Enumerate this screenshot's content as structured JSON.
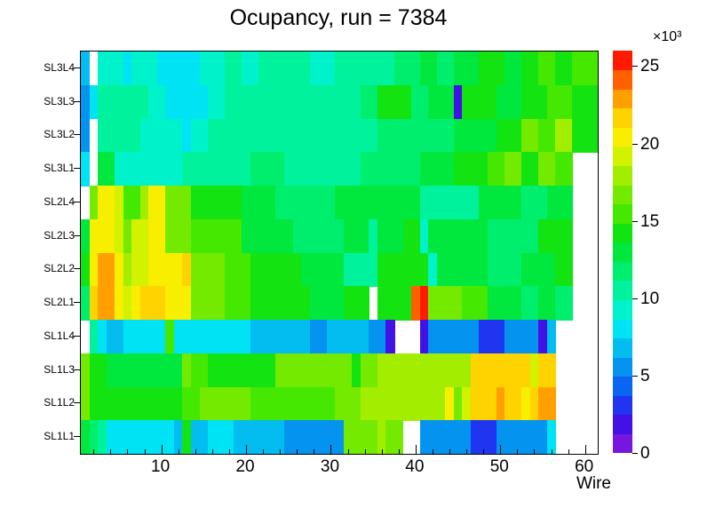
{
  "title": "Ocupancy, run = 7384",
  "axes": {
    "x_label": "Wire",
    "x_ticks": [
      10,
      20,
      30,
      40,
      50,
      60
    ],
    "x_minor_tick_step": 2,
    "x_range": [
      0.5,
      61.5
    ],
    "y_labels_top_to_bottom": [
      "SL3L4",
      "SL3L3",
      "SL3L2",
      "SL3L1",
      "SL2L4",
      "SL2L3",
      "SL2L2",
      "SL2L1",
      "SL1L4",
      "SL1L3",
      "SL1L2",
      "SL1L1"
    ],
    "colorbar": {
      "exponent_label": "×10³",
      "ticks": [
        0,
        5,
        10,
        15,
        20,
        25
      ],
      "min": 0,
      "max": 26
    }
  },
  "chart_data": {
    "type": "heatmap",
    "title": "Ocupancy, run = 7384",
    "xlabel": "Wire",
    "x_bins": 61,
    "background": "#ffffff",
    "no_data_color": "#ffffff",
    "value_scale": {
      "min": 0,
      "max": 26000,
      "bands": 21,
      "units": "counts"
    },
    "palette": [
      "#7716dd",
      "#4111e6",
      "#1f35f0",
      "#0a66f2",
      "#0593f0",
      "#03bdf0",
      "#00e3f4",
      "#00f2cb",
      "#00f29c",
      "#00ee6e",
      "#00e83d",
      "#14e312",
      "#45e800",
      "#74ea00",
      "#a3ee00",
      "#d2f200",
      "#f8ef00",
      "#ffd300",
      "#ffa000",
      "#ff6100",
      "#ff1b00"
    ],
    "rows_top_to_bottom": [
      {
        "label": "SL3L4",
        "segments": [
          [
            1,
            1,
            5
          ],
          [
            2,
            2,
            null
          ],
          [
            3,
            5,
            7
          ],
          [
            6,
            6,
            6
          ],
          [
            7,
            9,
            7
          ],
          [
            10,
            14,
            6
          ],
          [
            15,
            17,
            7
          ],
          [
            18,
            19,
            8
          ],
          [
            20,
            21,
            7
          ],
          [
            22,
            27,
            8
          ],
          [
            28,
            30,
            7
          ],
          [
            31,
            37,
            8
          ],
          [
            38,
            40,
            9
          ],
          [
            41,
            42,
            10
          ],
          [
            43,
            44,
            9
          ],
          [
            45,
            47,
            10
          ],
          [
            48,
            50,
            11
          ],
          [
            51,
            52,
            10
          ],
          [
            53,
            54,
            11
          ],
          [
            55,
            56,
            12
          ],
          [
            57,
            58,
            11
          ],
          [
            59,
            61,
            12
          ]
        ]
      },
      {
        "label": "SL3L3",
        "segments": [
          [
            1,
            1,
            4
          ],
          [
            2,
            2,
            6
          ],
          [
            3,
            8,
            8
          ],
          [
            9,
            10,
            7
          ],
          [
            11,
            15,
            6
          ],
          [
            16,
            17,
            7
          ],
          [
            18,
            33,
            8
          ],
          [
            34,
            35,
            9
          ],
          [
            36,
            39,
            11
          ],
          [
            40,
            41,
            9
          ],
          [
            42,
            44,
            10
          ],
          [
            45,
            45,
            1
          ],
          [
            46,
            49,
            11
          ],
          [
            50,
            52,
            10
          ],
          [
            53,
            55,
            11
          ],
          [
            56,
            58,
            12
          ],
          [
            59,
            61,
            11
          ]
        ]
      },
      {
        "label": "SL3L2",
        "segments": [
          [
            1,
            1,
            4
          ],
          [
            2,
            2,
            null
          ],
          [
            3,
            7,
            8
          ],
          [
            8,
            12,
            7
          ],
          [
            13,
            13,
            6
          ],
          [
            14,
            15,
            7
          ],
          [
            16,
            35,
            8
          ],
          [
            36,
            44,
            9
          ],
          [
            45,
            49,
            10
          ],
          [
            50,
            52,
            11
          ],
          [
            53,
            54,
            13
          ],
          [
            55,
            56,
            12
          ],
          [
            57,
            58,
            14
          ],
          [
            59,
            61,
            11
          ]
        ]
      },
      {
        "label": "SL3L1",
        "segments": [
          [
            1,
            1,
            6
          ],
          [
            2,
            2,
            null
          ],
          [
            3,
            4,
            10
          ],
          [
            5,
            12,
            7
          ],
          [
            13,
            20,
            8
          ],
          [
            21,
            24,
            9
          ],
          [
            25,
            33,
            8
          ],
          [
            34,
            40,
            9
          ],
          [
            41,
            44,
            10
          ],
          [
            45,
            48,
            11
          ],
          [
            49,
            50,
            12
          ],
          [
            51,
            52,
            13
          ],
          [
            53,
            54,
            11
          ],
          [
            55,
            56,
            13
          ],
          [
            57,
            58,
            12
          ],
          [
            59,
            61,
            null
          ]
        ]
      },
      {
        "label": "SL2L4",
        "segments": [
          [
            1,
            1,
            null
          ],
          [
            2,
            2,
            13
          ],
          [
            3,
            4,
            16
          ],
          [
            5,
            5,
            15
          ],
          [
            6,
            7,
            12
          ],
          [
            8,
            8,
            14
          ],
          [
            9,
            10,
            16
          ],
          [
            11,
            13,
            13
          ],
          [
            14,
            19,
            11
          ],
          [
            20,
            23,
            10
          ],
          [
            24,
            30,
            9
          ],
          [
            31,
            40,
            10
          ],
          [
            41,
            47,
            8
          ],
          [
            48,
            52,
            10
          ],
          [
            53,
            55,
            9
          ],
          [
            56,
            58,
            10
          ],
          [
            59,
            61,
            null
          ]
        ]
      },
      {
        "label": "SL2L3",
        "segments": [
          [
            1,
            1,
            10
          ],
          [
            2,
            4,
            16
          ],
          [
            5,
            5,
            15
          ],
          [
            6,
            6,
            13
          ],
          [
            7,
            8,
            15
          ],
          [
            9,
            10,
            16
          ],
          [
            11,
            13,
            13
          ],
          [
            14,
            19,
            12
          ],
          [
            20,
            25,
            10
          ],
          [
            26,
            31,
            9
          ],
          [
            32,
            34,
            10
          ],
          [
            35,
            35,
            8
          ],
          [
            36,
            38,
            10
          ],
          [
            39,
            40,
            11
          ],
          [
            41,
            41,
            7
          ],
          [
            42,
            48,
            10
          ],
          [
            49,
            54,
            9
          ],
          [
            55,
            58,
            11
          ],
          [
            59,
            61,
            null
          ]
        ]
      },
      {
        "label": "SL2L2",
        "segments": [
          [
            1,
            1,
            11
          ],
          [
            2,
            2,
            16
          ],
          [
            3,
            4,
            18
          ],
          [
            5,
            5,
            16
          ],
          [
            6,
            6,
            14
          ],
          [
            7,
            8,
            15
          ],
          [
            9,
            12,
            16
          ],
          [
            13,
            13,
            17
          ],
          [
            14,
            17,
            13
          ],
          [
            18,
            20,
            12
          ],
          [
            21,
            26,
            11
          ],
          [
            27,
            31,
            10
          ],
          [
            32,
            35,
            8
          ],
          [
            36,
            41,
            11
          ],
          [
            42,
            42,
            7
          ],
          [
            43,
            48,
            10
          ],
          [
            49,
            52,
            9
          ],
          [
            53,
            56,
            10
          ],
          [
            57,
            58,
            11
          ],
          [
            59,
            61,
            null
          ]
        ]
      },
      {
        "label": "SL2L1",
        "segments": [
          [
            1,
            1,
            9
          ],
          [
            2,
            2,
            17
          ],
          [
            3,
            4,
            18
          ],
          [
            5,
            5,
            16
          ],
          [
            6,
            6,
            15
          ],
          [
            7,
            7,
            16
          ],
          [
            8,
            10,
            17
          ],
          [
            11,
            13,
            16
          ],
          [
            14,
            17,
            13
          ],
          [
            18,
            20,
            12
          ],
          [
            21,
            27,
            11
          ],
          [
            28,
            31,
            10
          ],
          [
            32,
            34,
            11
          ],
          [
            35,
            35,
            null
          ],
          [
            36,
            39,
            11
          ],
          [
            40,
            40,
            19
          ],
          [
            41,
            41,
            20
          ],
          [
            42,
            45,
            13
          ],
          [
            46,
            48,
            12
          ],
          [
            49,
            52,
            10
          ],
          [
            53,
            54,
            9
          ],
          [
            55,
            56,
            10
          ],
          [
            57,
            58,
            9
          ],
          [
            59,
            61,
            null
          ]
        ]
      },
      {
        "label": "SL1L4",
        "segments": [
          [
            1,
            1,
            null
          ],
          [
            2,
            2,
            8
          ],
          [
            3,
            3,
            6
          ],
          [
            4,
            5,
            5
          ],
          [
            6,
            10,
            6
          ],
          [
            11,
            11,
            12
          ],
          [
            12,
            20,
            6
          ],
          [
            21,
            27,
            5
          ],
          [
            28,
            29,
            4
          ],
          [
            30,
            34,
            5
          ],
          [
            35,
            36,
            4
          ],
          [
            37,
            37,
            1
          ],
          [
            38,
            40,
            null
          ],
          [
            41,
            41,
            1
          ],
          [
            42,
            47,
            4
          ],
          [
            48,
            50,
            2
          ],
          [
            51,
            54,
            4
          ],
          [
            55,
            55,
            1
          ],
          [
            56,
            56,
            5
          ],
          [
            57,
            61,
            null
          ]
        ]
      },
      {
        "label": "SL1L3",
        "segments": [
          [
            1,
            1,
            13
          ],
          [
            2,
            3,
            11
          ],
          [
            4,
            12,
            10
          ],
          [
            13,
            13,
            13
          ],
          [
            14,
            15,
            12
          ],
          [
            16,
            23,
            11
          ],
          [
            24,
            32,
            13
          ],
          [
            33,
            33,
            11
          ],
          [
            34,
            35,
            13
          ],
          [
            36,
            46,
            14
          ],
          [
            47,
            53,
            17
          ],
          [
            54,
            54,
            15
          ],
          [
            55,
            56,
            17
          ],
          [
            57,
            61,
            null
          ]
        ]
      },
      {
        "label": "SL1L2",
        "segments": [
          [
            1,
            1,
            13
          ],
          [
            2,
            12,
            11
          ],
          [
            13,
            14,
            12
          ],
          [
            15,
            20,
            13
          ],
          [
            21,
            30,
            12
          ],
          [
            31,
            33,
            13
          ],
          [
            34,
            43,
            14
          ],
          [
            44,
            44,
            16
          ],
          [
            45,
            45,
            13
          ],
          [
            46,
            46,
            15
          ],
          [
            47,
            49,
            17
          ],
          [
            50,
            50,
            18
          ],
          [
            51,
            52,
            17
          ],
          [
            53,
            53,
            16
          ],
          [
            54,
            54,
            17
          ],
          [
            55,
            56,
            18
          ],
          [
            57,
            61,
            null
          ]
        ]
      },
      {
        "label": "SL1L1",
        "segments": [
          [
            1,
            1,
            10
          ],
          [
            2,
            2,
            9
          ],
          [
            3,
            3,
            8
          ],
          [
            4,
            11,
            6
          ],
          [
            12,
            12,
            5
          ],
          [
            13,
            13,
            11
          ],
          [
            14,
            15,
            5
          ],
          [
            16,
            18,
            6
          ],
          [
            19,
            20,
            5
          ],
          [
            21,
            24,
            5
          ],
          [
            25,
            31,
            4
          ],
          [
            32,
            35,
            13
          ],
          [
            36,
            36,
            14
          ],
          [
            37,
            38,
            13
          ],
          [
            39,
            40,
            null
          ],
          [
            41,
            46,
            4
          ],
          [
            47,
            49,
            2
          ],
          [
            50,
            55,
            4
          ],
          [
            56,
            56,
            6
          ],
          [
            57,
            61,
            null
          ]
        ]
      }
    ]
  }
}
